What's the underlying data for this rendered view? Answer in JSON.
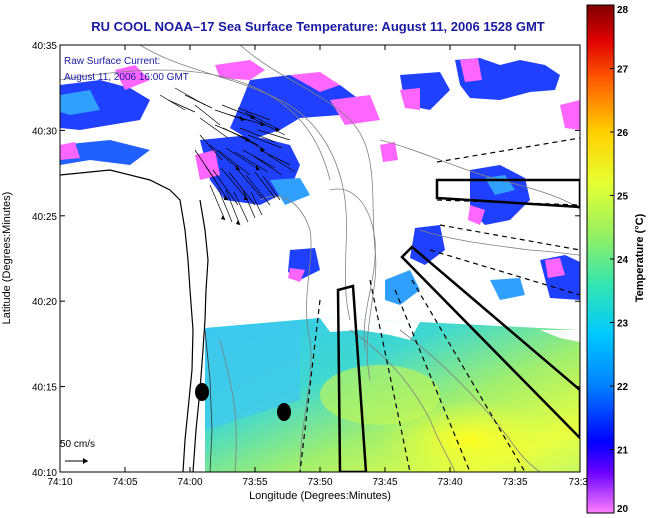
{
  "title": "RU COOL  NOAA–17  Sea Surface Temperature:  August 11, 2006 1528 GMT",
  "legend_text": {
    "line1": "Raw Surface Current:",
    "line2": "August 11, 2006 16:00 GMT"
  },
  "scale_label": "50 cm/s",
  "axes": {
    "xlabel": "Longitude (Degrees:Minutes)",
    "ylabel": "Latitude (Degrees:Minutes)",
    "x_ticks": [
      "74:10",
      "74:05",
      "74:00",
      "73:55",
      "73:50",
      "73:45",
      "73:40",
      "73:35",
      "73:3"
    ],
    "y_ticks": [
      "40:35",
      "40:30",
      "40:25",
      "40:20",
      "40:15",
      "40:10"
    ]
  },
  "colorbar": {
    "label": "Temperature (°C)",
    "ticks": [
      "28",
      "27",
      "26",
      "25",
      "24",
      "23",
      "22",
      "21",
      "20"
    ],
    "range": [
      20,
      28
    ]
  },
  "colors": {
    "title": "#1a1aa0",
    "colormap": [
      "#ff66ff",
      "#0000ff",
      "#00c8ff",
      "#33e6b0",
      "#ccff33",
      "#ffff00",
      "#ff9900",
      "#e00000",
      "#800000"
    ]
  }
}
